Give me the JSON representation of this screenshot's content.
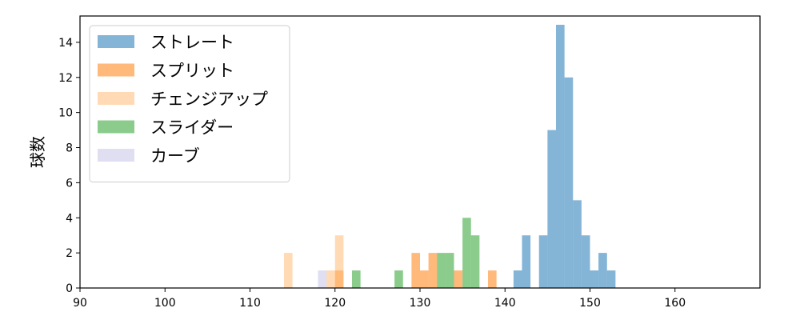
{
  "chart_data": {
    "type": "bar",
    "title": "",
    "xlabel": "",
    "ylabel": "球数",
    "xlim": [
      90,
      170
    ],
    "ylim": [
      0,
      15.5
    ],
    "x_ticks": [
      90,
      100,
      110,
      120,
      130,
      140,
      150,
      160
    ],
    "y_ticks": [
      0,
      2,
      4,
      6,
      8,
      10,
      12,
      14
    ],
    "bin_width": 1,
    "grid": false,
    "legend_position": "top-left",
    "series": [
      {
        "name": "ストレート",
        "color": "#1f77b4",
        "bins": [
          {
            "x": 141,
            "count": 1
          },
          {
            "x": 142,
            "count": 3
          },
          {
            "x": 144,
            "count": 3
          },
          {
            "x": 145,
            "count": 9
          },
          {
            "x": 146,
            "count": 15
          },
          {
            "x": 147,
            "count": 12
          },
          {
            "x": 148,
            "count": 5
          },
          {
            "x": 149,
            "count": 3
          },
          {
            "x": 150,
            "count": 1
          },
          {
            "x": 151,
            "count": 2
          },
          {
            "x": 152,
            "count": 1
          }
        ]
      },
      {
        "name": "スプリット",
        "color": "#ff7f0e",
        "bins": [
          {
            "x": 120,
            "count": 1
          },
          {
            "x": 129,
            "count": 2
          },
          {
            "x": 130,
            "count": 1
          },
          {
            "x": 131,
            "count": 2
          },
          {
            "x": 134,
            "count": 1
          },
          {
            "x": 138,
            "count": 1
          }
        ]
      },
      {
        "name": "チェンジアップ",
        "color": "#ffbb78",
        "bins": [
          {
            "x": 114,
            "count": 2
          },
          {
            "x": 119,
            "count": 1
          },
          {
            "x": 120,
            "count": 3
          }
        ]
      },
      {
        "name": "スライダー",
        "color": "#2ca02c",
        "bins": [
          {
            "x": 122,
            "count": 1
          },
          {
            "x": 127,
            "count": 1
          },
          {
            "x": 132,
            "count": 2
          },
          {
            "x": 133,
            "count": 2
          },
          {
            "x": 135,
            "count": 4
          },
          {
            "x": 136,
            "count": 3
          }
        ]
      },
      {
        "name": "カーブ",
        "color": "#c5c5e6",
        "bins": [
          {
            "x": 118,
            "count": 1
          }
        ]
      }
    ]
  }
}
